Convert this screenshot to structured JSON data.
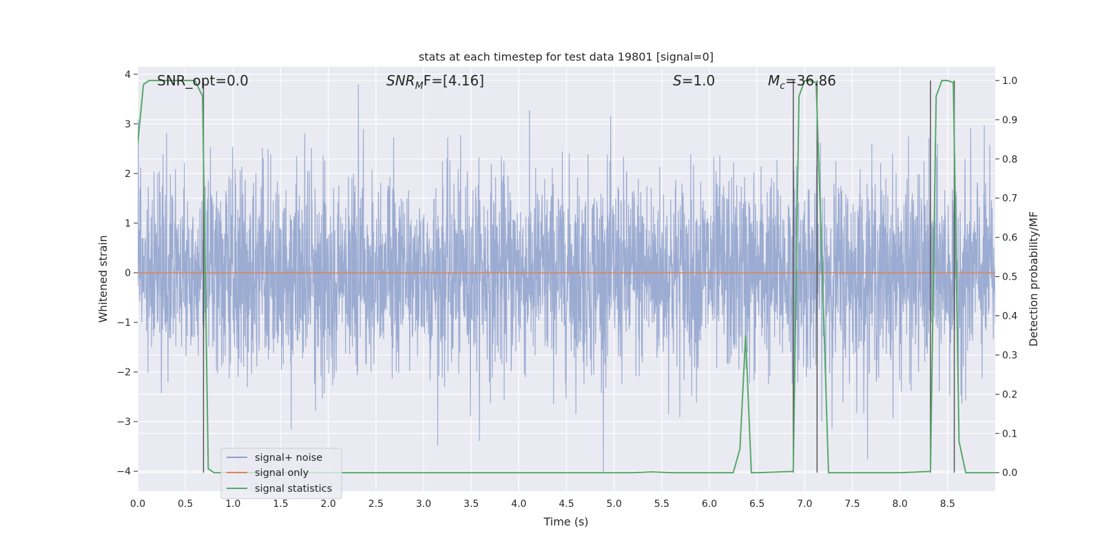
{
  "chart_data": {
    "type": "line",
    "title": "stats at each timestep for test data 19801 [signal=0]",
    "xlabel": "Time (s)",
    "ylabel": "Whitened strain",
    "y2label": "Detection probability/MF",
    "xlim": [
      0.0,
      9.0
    ],
    "ylim": [
      -4.4,
      4.15
    ],
    "y2lim": [
      -0.047,
      1.035
    ],
    "xticks": [
      "0.0",
      "0.5",
      "1.0",
      "1.5",
      "2.0",
      "2.5",
      "3.0",
      "3.5",
      "4.0",
      "4.5",
      "5.0",
      "5.5",
      "6.0",
      "6.5",
      "7.0",
      "7.5",
      "8.0",
      "8.5"
    ],
    "yticks": [
      "4",
      "3",
      "2",
      "1",
      "0",
      "−1",
      "−2",
      "−3",
      "−4"
    ],
    "y2ticks": [
      "1.0",
      "0.9",
      "0.8",
      "0.7",
      "0.6",
      "0.5",
      "0.4",
      "0.3",
      "0.2",
      "0.1",
      "0.0"
    ],
    "grid": true,
    "legend_position": "lower-left",
    "annotations": {
      "snr_opt": "SNR_opt=0.0",
      "snr_mf_prefix": "SNR",
      "snr_mf_sub": "M",
      "snr_mf_suffix": "F=[4.16]",
      "s_prefix": "S",
      "s_value": "=1.0",
      "mc_prefix": "M",
      "mc_sub": "c",
      "mc_value": "=36.86"
    },
    "series": [
      {
        "name": "signal+ noise",
        "color": "#8da0cb",
        "kind": "noise",
        "x_range": [
          0.0,
          9.0
        ],
        "amplitude_std": 1.0
      },
      {
        "name": "signal only",
        "color": "#dd8452",
        "kind": "line",
        "x": [
          0.0,
          9.0
        ],
        "y": [
          0.0,
          0.0
        ]
      },
      {
        "name": "signal statistics",
        "color": "#55a868",
        "kind": "line",
        "axis": "right",
        "x": [
          0.0,
          0.06,
          0.12,
          0.25,
          0.5,
          0.6,
          0.68,
          0.74,
          0.8,
          1.0,
          2.0,
          3.0,
          4.0,
          5.0,
          5.2,
          5.4,
          5.6,
          6.0,
          6.25,
          6.32,
          6.38,
          6.44,
          6.5,
          6.88,
          6.94,
          7.0,
          7.06,
          7.12,
          7.18,
          7.25,
          7.5,
          8.0,
          8.32,
          8.38,
          8.44,
          8.5,
          8.56,
          8.62,
          8.69,
          8.8,
          9.0
        ],
        "y": [
          0.84,
          0.99,
          1.0,
          1.0,
          1.0,
          1.0,
          0.96,
          0.01,
          0.0,
          0.0,
          0.0,
          0.0,
          0.0,
          0.0,
          0.0,
          0.002,
          0.0,
          0.0,
          0.0,
          0.06,
          0.35,
          0.0,
          0.0,
          0.003,
          0.96,
          1.0,
          1.0,
          0.995,
          0.55,
          0.0,
          0.0,
          0.0,
          0.003,
          0.96,
          1.0,
          1.0,
          0.995,
          0.08,
          0.0,
          0.0,
          0.0
        ]
      }
    ],
    "vlines": [
      {
        "x": 0.69,
        "color": "#555555"
      },
      {
        "x": 6.88,
        "color": "#555555"
      },
      {
        "x": 7.13,
        "color": "#555555"
      },
      {
        "x": 8.32,
        "color": "#555555"
      },
      {
        "x": 8.57,
        "color": "#555555"
      }
    ]
  }
}
